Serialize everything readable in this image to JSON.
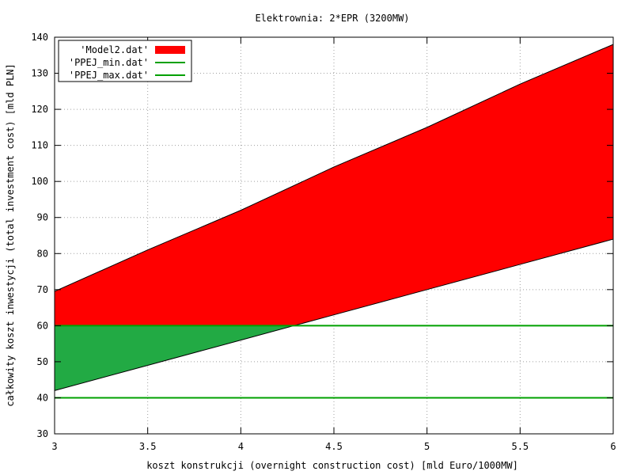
{
  "chart_data": {
    "type": "area",
    "title": "Elektrownia: 2*EPR (3200MW)",
    "xlabel": "koszt konstrukcji (overnight construction cost) [mld Euro/1000MW]",
    "ylabel": "całkowity koszt inwestycji (total investment cost) [mld PLN]",
    "xlim": [
      3,
      6
    ],
    "ylim": [
      30,
      140
    ],
    "xticks": [
      "3",
      "3.5",
      "4",
      "4.5",
      "5",
      "5.5",
      "6"
    ],
    "yticks": [
      "30",
      "40",
      "50",
      "60",
      "70",
      "80",
      "90",
      "100",
      "110",
      "120",
      "130",
      "140"
    ],
    "grid": true,
    "legend_position": "top-left",
    "series": [
      {
        "name": "'Model2.dat'",
        "kind": "band",
        "color": "#ff0000",
        "x": [
          3,
          3.5,
          4,
          4.5,
          5,
          5.5,
          6
        ],
        "lower": [
          42,
          49,
          56,
          63,
          70,
          77,
          84
        ],
        "upper": [
          69.5,
          81,
          92,
          104,
          115,
          127,
          138
        ]
      },
      {
        "name": "'PPEJ_min.dat'",
        "kind": "hline",
        "color": "#00a000",
        "y": 60
      },
      {
        "name": "'PPEJ_max.dat'",
        "kind": "hline",
        "color": "#00a000",
        "y": 40
      }
    ],
    "overlap_fill_color": "#22aa44"
  }
}
